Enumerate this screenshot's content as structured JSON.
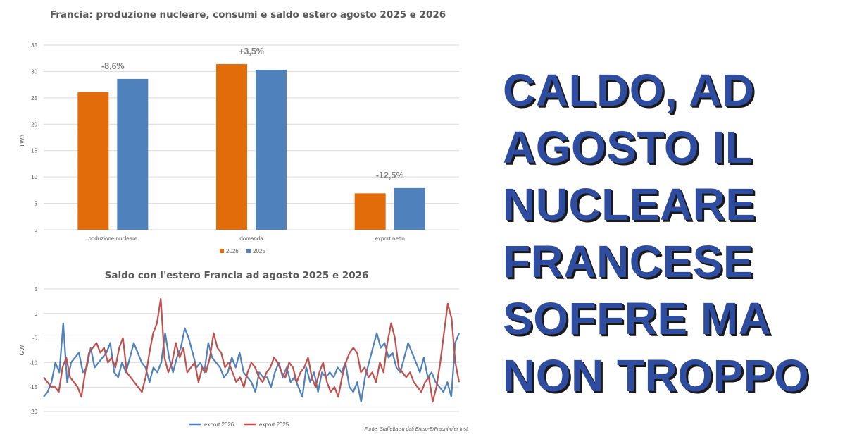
{
  "chart_data": [
    {
      "type": "bar",
      "title": "Francia: produzione nucleare, consumi e saldo estero agosto 2025 e 2026",
      "ylabel": "TWh",
      "ylim": [
        0,
        35
      ],
      "yticks": [
        0,
        5,
        10,
        15,
        20,
        25,
        30,
        35
      ],
      "grid": true,
      "legend_position": "bottom",
      "categories": [
        "poduzione nucleare",
        "domanda",
        "export netto"
      ],
      "series": [
        {
          "name": "2026",
          "color": "#e36c0a",
          "values": [
            26.1,
            31.4,
            6.9
          ]
        },
        {
          "name": "2025",
          "color": "#4f81bd",
          "values": [
            28.6,
            30.3,
            7.9
          ]
        }
      ],
      "annotations": [
        "-8,6%",
        "+3,5%",
        "-12,5%"
      ]
    },
    {
      "type": "line",
      "title": "Saldo con l'estero Francia ad agosto 2025 e 2026",
      "ylabel": "GW",
      "ylim": [
        -20,
        5
      ],
      "yticks": [
        -20,
        -15,
        -10,
        -5,
        0,
        5
      ],
      "grid": true,
      "legend_position": "bottom",
      "x_range": [
        1,
        31
      ],
      "series": [
        {
          "name": "export 2026",
          "color": "#4f81bd",
          "values": [
            -17,
            -16,
            -14,
            -10,
            -12,
            -2,
            -14,
            -10,
            -9,
            -8,
            -12,
            -11,
            -7,
            -11,
            -10,
            -9,
            -8,
            -6,
            -12,
            -13,
            -10,
            -12,
            -9,
            -6,
            -8,
            -10,
            -11,
            -14,
            -11,
            -12,
            -10,
            -4,
            -9,
            -12,
            -9,
            -7,
            -3,
            -5,
            -8,
            -11,
            -10,
            -12,
            -6,
            -9,
            -10,
            -11,
            -13,
            -12,
            -9,
            -11,
            -8,
            -12,
            -13,
            -14,
            -16,
            -12,
            -13,
            -13,
            -15,
            -12,
            -10,
            -13,
            -11,
            -14,
            -13,
            -15,
            -17,
            -11,
            -14,
            -12,
            -16,
            -12,
            -13,
            -12,
            -13,
            -11,
            -12,
            -10,
            -15,
            -16,
            -14,
            -18,
            -13,
            -10,
            -7,
            -4,
            -7,
            -6,
            -9,
            -8,
            -11,
            -12,
            -9,
            -6,
            -8,
            -10,
            -12,
            -9,
            -13,
            -12,
            -14,
            -15,
            -16,
            -14,
            -17,
            -6,
            -4
          ]
        },
        {
          "name": "export 2025",
          "color": "#c0504d",
          "values": [
            -13,
            -14,
            -15,
            -15,
            -16,
            -11,
            -9,
            -13,
            -14,
            -15,
            -17,
            -12,
            -8,
            -7,
            -6,
            -8,
            -7,
            -10,
            -9,
            -11,
            -7,
            -5,
            -12,
            -13,
            -14,
            -15,
            -16,
            -13,
            -8,
            -4,
            -2,
            3,
            -9,
            -12,
            -10,
            -6,
            -9,
            -7,
            -12,
            -11,
            -10,
            -14,
            -11,
            -12,
            -9,
            -4,
            -7,
            -8,
            -11,
            -10,
            -12,
            -14,
            -13,
            -15,
            -12,
            -10,
            -11,
            -13,
            -14,
            -12,
            -11,
            -9,
            -10,
            -12,
            -13,
            -10,
            -11,
            -14,
            -12,
            -11,
            -9,
            -13,
            -15,
            -12,
            -10,
            -14,
            -16,
            -15,
            -17,
            -13,
            -10,
            -8,
            -7,
            -8,
            -12,
            -11,
            -13,
            -12,
            -14,
            -10,
            -12,
            -6,
            -2,
            -5,
            -11,
            -12,
            -13,
            -12,
            -14,
            -15,
            -16,
            -14,
            -13,
            -18,
            -15,
            -10,
            -4,
            2,
            -1,
            -10,
            -14
          ]
        }
      ],
      "source": "Fonte: Staffetta su dati Entso-E/Fraunhofer Inst."
    }
  ],
  "headline": {
    "lines": [
      "CALDO, AD",
      "AGOSTO IL",
      "NUCLEARE",
      "FRANCESE",
      "SOFFRE MA",
      "NON TROPPO"
    ],
    "color": "#2f4da0"
  }
}
